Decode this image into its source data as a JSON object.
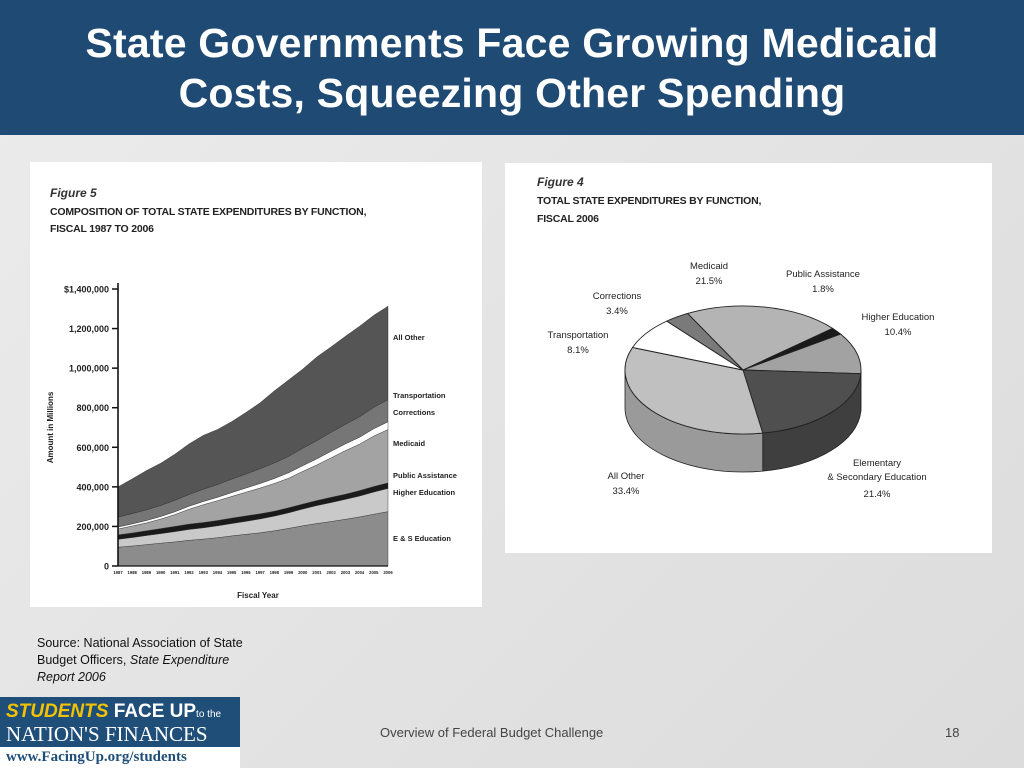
{
  "header": {
    "title_line1": "State Governments Face Growing Medicaid",
    "title_line2": "Costs, Squeezing Other Spending"
  },
  "source": {
    "prefix": "Source: National Association of State Budget Officers, ",
    "italic": "State Expenditure Report 2006"
  },
  "logo": {
    "students": "STUDENTS",
    "face_up": "FACE UP",
    "to_the": "to the",
    "nations": "NATION'S FINANCES",
    "url": "www.FacingUp.org/students"
  },
  "footer": {
    "text": "Overview of Federal Budget Challenge",
    "page": "18"
  },
  "colors": {
    "header_bg": "#1e4a73",
    "logo_bg": "#1f4e79",
    "logo_gold": "#f2c200"
  },
  "chart_data": [
    {
      "type": "area",
      "figure_label": "Figure 5",
      "title_line1": "COMPOSITION OF TOTAL STATE EXPENDITURES BY FUNCTION,",
      "title_line2": "FISCAL 1987 TO 2006",
      "xlabel": "Fiscal Year",
      "ylabel": "Amount in Millions",
      "ylim": [
        0,
        1400000
      ],
      "yticks": [
        0,
        200000,
        400000,
        600000,
        800000,
        1000000,
        1200000,
        1400000
      ],
      "ytick_labels": [
        "0",
        "200,000",
        "400,000",
        "600,000",
        "800,000",
        "1,000,000",
        "1,200,000",
        "$1,400,000"
      ],
      "x": [
        "1987",
        "1988",
        "1989",
        "1990",
        "1991",
        "1992",
        "1993",
        "1994",
        "1995",
        "1996",
        "1997",
        "1998",
        "1999",
        "2000",
        "2001",
        "2002",
        "2003",
        "2004",
        "2005",
        "2006"
      ],
      "stacked": true,
      "series": [
        {
          "name": "E & S Education",
          "color": "#8c8c8c",
          "values": [
            95000,
            101000,
            108000,
            115000,
            122000,
            130000,
            136000,
            143000,
            152000,
            160000,
            168000,
            178000,
            190000,
            203000,
            215000,
            225000,
            236000,
            248000,
            262000,
            275000
          ]
        },
        {
          "name": "Higher Education",
          "color": "#c9c9c9",
          "values": [
            40000,
            43000,
            46000,
            49000,
            52000,
            55000,
            57000,
            60000,
            63000,
            66000,
            70000,
            74000,
            79000,
            85000,
            91000,
            96000,
            101000,
            106000,
            112000,
            117000
          ]
        },
        {
          "name": "Public Assistance",
          "color": "#1a1a1a",
          "values": [
            22000,
            23000,
            24000,
            25000,
            26000,
            27000,
            27000,
            27000,
            27000,
            27000,
            26000,
            25000,
            25000,
            25000,
            25000,
            26000,
            26000,
            27000,
            28000,
            28000
          ]
        },
        {
          "name": "Medicaid",
          "color": "#a3a3a3",
          "values": [
            30000,
            35000,
            40000,
            48000,
            60000,
            75000,
            90000,
            100000,
            110000,
            120000,
            130000,
            140000,
            150000,
            165000,
            180000,
            200000,
            220000,
            235000,
            255000,
            270000
          ]
        },
        {
          "name": "Corrections",
          "color": "#ffffff",
          "values": [
            10000,
            11000,
            12000,
            13000,
            14000,
            15000,
            16000,
            17000,
            19000,
            21000,
            23000,
            25000,
            27000,
            29000,
            31000,
            33000,
            34000,
            35000,
            37000,
            39000
          ]
        },
        {
          "name": "Transportation",
          "color": "#767676",
          "values": [
            50000,
            52000,
            54000,
            56000,
            58000,
            60000,
            62000,
            65000,
            68000,
            71000,
            75000,
            79000,
            83000,
            88000,
            92000,
            96000,
            99000,
            103000,
            108000,
            112000
          ]
        },
        {
          "name": "All Other",
          "color": "#555555",
          "values": [
            153000,
            175000,
            198000,
            213000,
            233000,
            255000,
            272000,
            278000,
            291000,
            311000,
            333000,
            364000,
            386000,
            400000,
            423000,
            432000,
            445000,
            458000,
            465000,
            472000
          ]
        }
      ],
      "legend_labels": [
        "All Other",
        "Transportation",
        "Corrections",
        "Medicaid",
        "Public Assistance",
        "Higher Education",
        "E & S Education"
      ]
    },
    {
      "type": "pie",
      "figure_label": "Figure 4",
      "title_line1": "TOTAL STATE EXPENDITURES BY FUNCTION,",
      "title_line2": "FISCAL 2006",
      "slices": [
        {
          "name": "Medicaid",
          "value": 21.5,
          "label": "21.5%",
          "color": "#b4b4b4"
        },
        {
          "name": "Public Assistance",
          "value": 1.8,
          "label": "1.8%",
          "color": "#1a1a1a"
        },
        {
          "name": "Higher Education",
          "value": 10.4,
          "label": "10.4%",
          "color": "#a2a2a2"
        },
        {
          "name": "Elementary & Secondary Education",
          "value": 21.4,
          "label": "21.4%",
          "color": "#4f4f4f",
          "label_line1": "Elementary",
          "label_line2": "& Secondary Education"
        },
        {
          "name": "All Other",
          "value": 33.4,
          "label": "33.4%",
          "color": "#c0c0c0"
        },
        {
          "name": "Transportation",
          "value": 8.1,
          "label": "8.1%",
          "color": "#ffffff"
        },
        {
          "name": "Corrections",
          "value": 3.4,
          "label": "3.4%",
          "color": "#7a7a7a"
        }
      ]
    }
  ]
}
